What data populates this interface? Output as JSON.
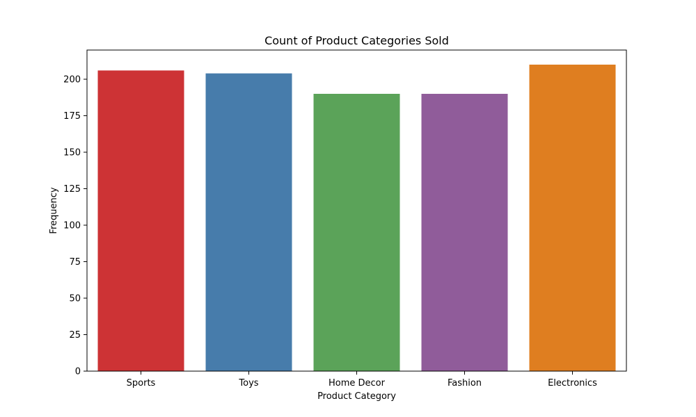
{
  "chart_data": {
    "type": "bar",
    "title": "Count of Product Categories Sold",
    "xlabel": "Product Category",
    "ylabel": "Frequency",
    "categories": [
      "Sports",
      "Toys",
      "Home Decor",
      "Fashion",
      "Electronics"
    ],
    "values": [
      206,
      204,
      190,
      190,
      210
    ],
    "colors": [
      "#cd3335",
      "#477cab",
      "#5ba359",
      "#905c9a",
      "#df7e20"
    ],
    "ylim": [
      0,
      220
    ],
    "yticks": [
      0,
      25,
      50,
      75,
      100,
      125,
      150,
      175,
      200
    ],
    "grid": false,
    "legend": "none"
  }
}
